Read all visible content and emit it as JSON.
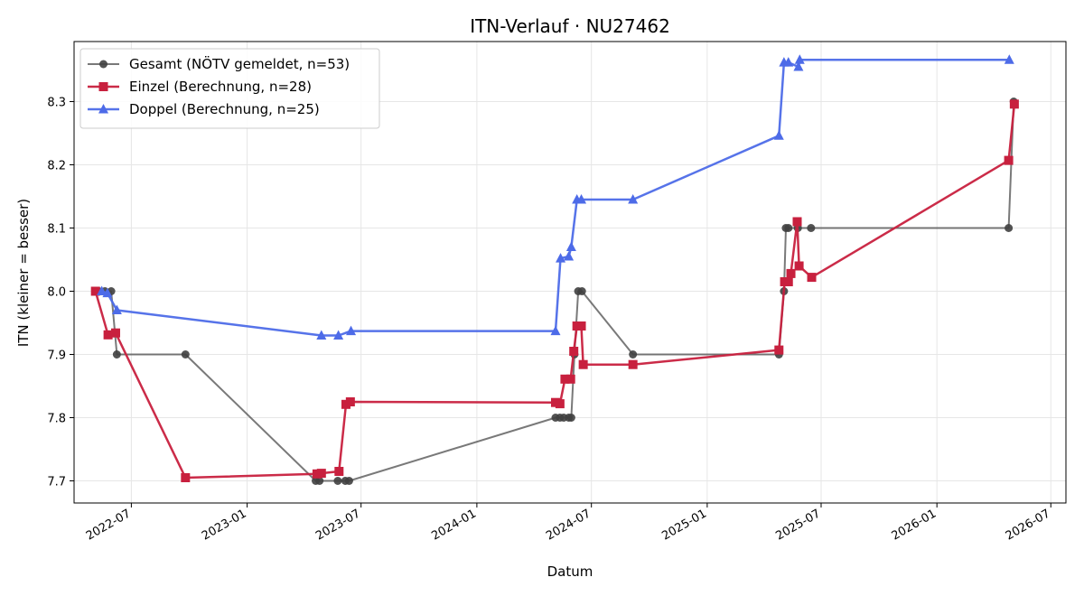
{
  "chart_data": {
    "type": "line",
    "title": "ITN-Verlauf · NU27462",
    "xlabel": "Datum",
    "ylabel": "ITN  (kleiner = besser)",
    "xlim": [
      "2022-04-01",
      "2026-07-25"
    ],
    "ylim": [
      7.665,
      8.395
    ],
    "x_ticks": [
      "2022-07",
      "2023-01",
      "2023-07",
      "2024-01",
      "2024-07",
      "2025-01",
      "2025-07",
      "2026-01",
      "2026-07"
    ],
    "y_ticks": [
      7.7,
      7.8,
      7.9,
      8.0,
      8.1,
      8.2,
      8.3
    ],
    "y_tick_labels": [
      "7.7",
      "7.8",
      "7.9",
      "8.0",
      "8.1",
      "8.2",
      "8.3"
    ],
    "grid": true,
    "legend_position": "top-left",
    "series": [
      {
        "name": "Gesamt (NÖTV gemeldet, n=53)",
        "color": "#404040",
        "marker": "circle",
        "points": [
          [
            "2022-05-10",
            8.0
          ],
          [
            "2022-05-20",
            8.0
          ],
          [
            "2022-05-30",
            8.0
          ],
          [
            "2022-06-08",
            7.9
          ],
          [
            "2022-09-25",
            7.9
          ],
          [
            "2023-04-20",
            7.7
          ],
          [
            "2023-04-26",
            7.7
          ],
          [
            "2023-05-25",
            7.7
          ],
          [
            "2023-06-06",
            7.7
          ],
          [
            "2023-06-12",
            7.7
          ],
          [
            "2024-05-05",
            7.8
          ],
          [
            "2024-05-12",
            7.8
          ],
          [
            "2024-05-18",
            7.8
          ],
          [
            "2024-05-26",
            7.8
          ],
          [
            "2024-05-30",
            7.8
          ],
          [
            "2024-06-04",
            7.9
          ],
          [
            "2024-06-10",
            8.0
          ],
          [
            "2024-06-16",
            8.0
          ],
          [
            "2024-09-05",
            7.9
          ],
          [
            "2025-04-25",
            7.9
          ],
          [
            "2025-05-03",
            8.0
          ],
          [
            "2025-05-06",
            8.1
          ],
          [
            "2025-05-10",
            8.1
          ],
          [
            "2025-05-25",
            8.1
          ],
          [
            "2025-06-15",
            8.1
          ],
          [
            "2026-04-25",
            8.1
          ],
          [
            "2026-05-03",
            8.3
          ]
        ]
      },
      {
        "name": "Einzel (Berechnung, n=28)",
        "color": "#c8203e",
        "marker": "square",
        "points": [
          [
            "2022-05-05",
            8.0
          ],
          [
            "2022-05-25",
            7.931
          ],
          [
            "2022-06-06",
            7.934
          ],
          [
            "2022-09-25",
            7.705
          ],
          [
            "2023-04-22",
            7.711
          ],
          [
            "2023-04-29",
            7.712
          ],
          [
            "2023-05-27",
            7.715
          ],
          [
            "2023-06-07",
            7.821
          ],
          [
            "2023-06-14",
            7.825
          ],
          [
            "2024-05-05",
            7.824
          ],
          [
            "2024-05-12",
            7.822
          ],
          [
            "2024-05-20",
            7.861
          ],
          [
            "2024-05-29",
            7.861
          ],
          [
            "2024-06-03",
            7.905
          ],
          [
            "2024-06-08",
            7.945
          ],
          [
            "2024-06-15",
            7.945
          ],
          [
            "2024-06-18",
            7.884
          ],
          [
            "2024-09-05",
            7.884
          ],
          [
            "2025-04-25",
            7.907
          ],
          [
            "2025-05-04",
            8.015
          ],
          [
            "2025-05-10",
            8.015
          ],
          [
            "2025-05-14",
            8.028
          ],
          [
            "2025-05-24",
            8.11
          ],
          [
            "2025-05-27",
            8.04
          ],
          [
            "2025-06-16",
            8.022
          ],
          [
            "2026-04-25",
            8.207
          ],
          [
            "2026-05-04",
            8.296
          ]
        ]
      },
      {
        "name": "Doppel (Berechnung, n=25)",
        "color": "#4d6be8",
        "marker": "triangle",
        "points": [
          [
            "2022-05-15",
            8.0
          ],
          [
            "2022-05-24",
            7.997
          ],
          [
            "2022-06-08",
            7.97
          ],
          [
            "2023-04-29",
            7.93
          ],
          [
            "2023-05-26",
            7.93
          ],
          [
            "2023-06-15",
            7.937
          ],
          [
            "2024-05-05",
            7.937
          ],
          [
            "2024-05-13",
            8.052
          ],
          [
            "2024-05-26",
            8.055
          ],
          [
            "2024-05-30",
            8.07
          ],
          [
            "2024-06-08",
            8.145
          ],
          [
            "2024-06-15",
            8.145
          ],
          [
            "2024-09-05",
            8.145
          ],
          [
            "2025-04-25",
            8.246
          ],
          [
            "2025-05-03",
            8.362
          ],
          [
            "2025-05-10",
            8.362
          ],
          [
            "2025-05-26",
            8.355
          ],
          [
            "2025-05-28",
            8.366
          ],
          [
            "2026-04-26",
            8.366
          ]
        ]
      }
    ]
  }
}
